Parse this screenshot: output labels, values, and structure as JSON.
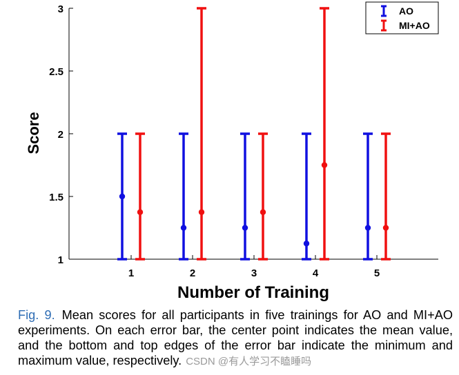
{
  "chart_data": {
    "type": "errorbar",
    "title": "",
    "xlabel": "Number of Training",
    "ylabel": "Score",
    "categories": [
      "1",
      "2",
      "3",
      "4",
      "5"
    ],
    "ylim": [
      1,
      3
    ],
    "yticks": [
      "1",
      "1.5",
      "2",
      "2.5",
      "3"
    ],
    "legend_position": "top-right",
    "grid": false,
    "series": [
      {
        "name": "AO",
        "color": "#1010e0",
        "mean": [
          1.5,
          1.25,
          1.25,
          1.125,
          1.25
        ],
        "min": [
          1,
          1,
          1,
          1,
          1
        ],
        "max": [
          2,
          2,
          2,
          2,
          2
        ]
      },
      {
        "name": "MI+AO",
        "color": "#f01010",
        "mean": [
          1.375,
          1.375,
          1.375,
          1.75,
          1.25
        ],
        "min": [
          1,
          1,
          1,
          1,
          1
        ],
        "max": [
          2,
          3,
          2,
          3,
          2
        ]
      }
    ]
  },
  "caption": {
    "label": "Fig. 9.",
    "text": "Mean scores for all participants in five trainings for AO and MI+AO experiments. On each error bar, the center point indicates the mean value, and the bottom and top edges of the error bar indicate the minimum and maximum value, respectively.",
    "watermark": "CSDN @有人学习不瞌睡吗"
  }
}
